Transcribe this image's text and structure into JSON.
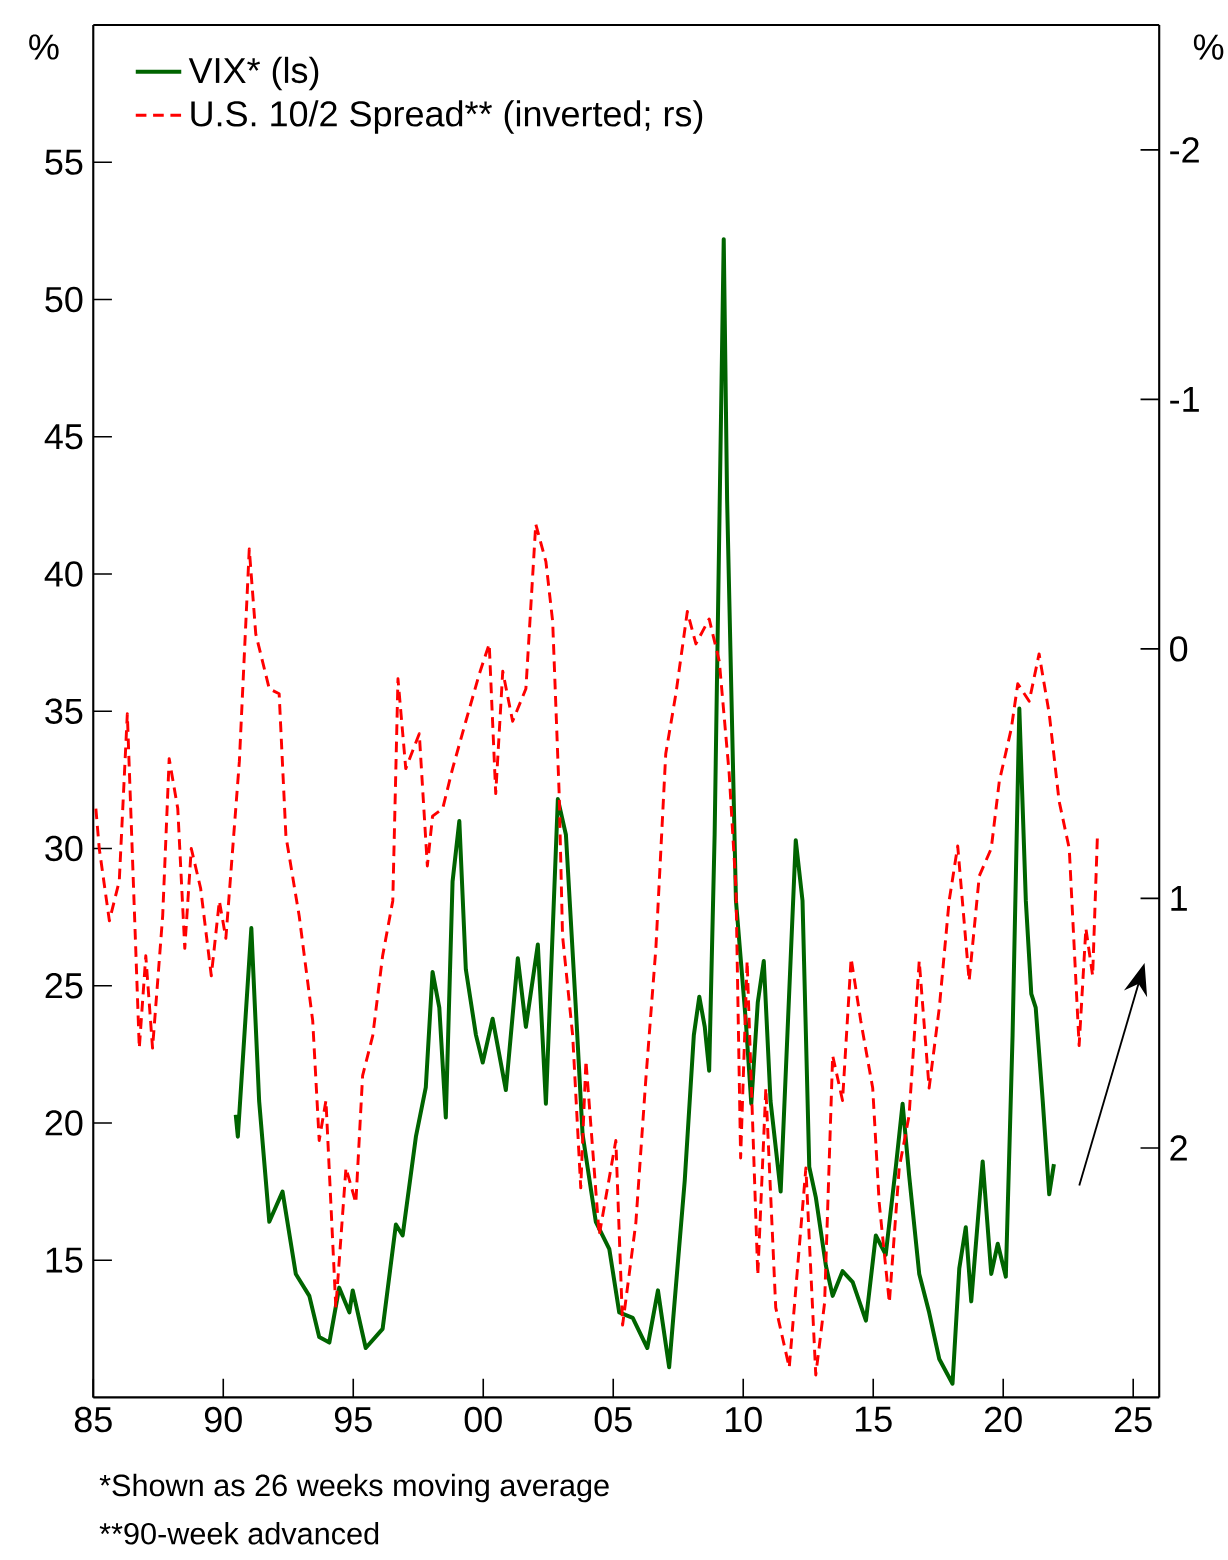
{
  "chart_data": {
    "type": "line",
    "ylabel": "%",
    "y2label": "%",
    "legend": "top left",
    "xlim": [
      1985,
      2026
    ],
    "ylim": [
      10,
      60
    ],
    "y2lim": [
      3,
      -2.5
    ],
    "xticks": [
      {
        "value": 1985,
        "label": "85"
      },
      {
        "value": 1990,
        "label": "90"
      },
      {
        "value": 1995,
        "label": "95"
      },
      {
        "value": 2000,
        "label": "00"
      },
      {
        "value": 2005,
        "label": "05"
      },
      {
        "value": 2010,
        "label": "10"
      },
      {
        "value": 2015,
        "label": "15"
      },
      {
        "value": 2020,
        "label": "20"
      },
      {
        "value": 2025,
        "label": "25"
      }
    ],
    "yticks": [
      15,
      20,
      25,
      30,
      35,
      40,
      45,
      50,
      55
    ],
    "y2ticks": [
      -2,
      -1,
      0,
      1,
      2
    ],
    "annotations": [
      "*Shown as 26 weeks moving average",
      "**90-week advanced"
    ],
    "series": [
      {
        "name": "VIX* (ls)",
        "color": "#006400",
        "line_style": "solid",
        "x": [
          1990.48,
          1990.56,
          1991.08,
          1991.38,
          1991.77,
          1992.28,
          1992.79,
          1993.31,
          1993.69,
          1994.08,
          1994.46,
          1994.85,
          1994.98,
          1995.48,
          1996.13,
          1996.64,
          1996.9,
          1997.41,
          1997.79,
          1998.05,
          1998.31,
          1998.56,
          1998.82,
          1999.08,
          1999.33,
          1999.72,
          1999.98,
          2000.36,
          2000.87,
          2001.33,
          2001.64,
          2002.1,
          2002.41,
          2002.87,
          2003.18,
          2003.56,
          2003.82,
          2004.33,
          2004.85,
          2005.23,
          2005.75,
          2006.31,
          2006.72,
          2007.15,
          2007.75,
          2008.1,
          2008.31,
          2008.52,
          2008.69,
          2008.9,
          2009.25,
          2009.38,
          2009.72,
          2010.1,
          2010.31,
          2010.56,
          2010.79,
          2011.05,
          2011.44,
          2012.02,
          2012.28,
          2012.54,
          2012.79,
          2013.18,
          2013.44,
          2013.82,
          2014.21,
          2014.72,
          2015.1,
          2015.48,
          2015.87,
          2016.13,
          2016.38,
          2016.77,
          2017.15,
          2017.54,
          2018.05,
          2018.31,
          2018.56,
          2018.77,
          2019.21,
          2019.54,
          2019.79,
          2020.1,
          2020.36,
          2020.62,
          2020.87,
          2021.08,
          2021.25,
          2021.52,
          2021.77,
          2021.95
        ],
        "values": [
          20.3,
          19.5,
          27.1,
          20.8,
          16.4,
          17.5,
          14.5,
          13.7,
          12.2,
          12.0,
          14.0,
          13.1,
          13.9,
          11.8,
          12.5,
          16.3,
          15.9,
          19.5,
          21.3,
          25.5,
          24.2,
          20.2,
          28.8,
          31.0,
          25.6,
          23.2,
          22.2,
          23.8,
          21.2,
          26.0,
          23.5,
          26.5,
          20.7,
          31.8,
          30.5,
          24.2,
          19.6,
          16.4,
          15.4,
          13.1,
          12.9,
          11.8,
          13.9,
          11.1,
          17.9,
          23.2,
          24.6,
          23.5,
          21.9,
          30.5,
          52.2,
          42.7,
          28.1,
          23.7,
          20.7,
          24.4,
          25.9,
          20.8,
          17.5,
          30.3,
          28.1,
          18.4,
          17.3,
          14.8,
          13.7,
          14.6,
          14.2,
          12.8,
          15.9,
          15.2,
          18.4,
          20.7,
          18.1,
          14.5,
          13.1,
          11.4,
          10.5,
          14.7,
          16.2,
          13.5,
          18.6,
          14.5,
          15.6,
          14.4,
          23.2,
          35.1,
          28.1,
          24.7,
          24.2,
          20.8,
          17.4,
          18.5
        ]
      },
      {
        "name": "U.S. 10/2 Spread** (inverted; rs)",
        "color": "#ff0000",
        "line_style": "dashed",
        "axis": "y2",
        "x": [
          1985.1,
          1985.23,
          1985.62,
          1986.0,
          1986.31,
          1986.77,
          1987.02,
          1987.28,
          1987.67,
          1987.92,
          1988.25,
          1988.52,
          1988.77,
          1989.13,
          1989.54,
          1989.85,
          1990.1,
          1990.62,
          1991.0,
          1991.25,
          1991.77,
          1992.15,
          1992.41,
          1992.92,
          1993.44,
          1993.69,
          1993.95,
          1994.33,
          1994.72,
          1995.1,
          1995.36,
          1995.75,
          1996.13,
          1996.52,
          1996.72,
          1997.02,
          1997.54,
          1997.85,
          1998.05,
          1998.44,
          1998.82,
          1999.33,
          1999.85,
          2000.23,
          2000.48,
          2000.75,
          2001.13,
          2001.64,
          2002.02,
          2002.41,
          2002.67,
          2002.92,
          2003.05,
          2003.44,
          2003.75,
          2003.95,
          2004.46,
          2005.1,
          2005.36,
          2005.87,
          2006.25,
          2006.64,
          2007.02,
          2007.41,
          2007.85,
          2008.18,
          2008.69,
          2009.08,
          2009.46,
          2009.72,
          2009.9,
          2010.15,
          2010.56,
          2010.87,
          2011.25,
          2011.77,
          2012.41,
          2012.79,
          2013.13,
          2013.44,
          2013.82,
          2014.15,
          2014.52,
          2014.98,
          2015.23,
          2015.62,
          2016.0,
          2016.38,
          2016.77,
          2017.15,
          2017.54,
          2017.92,
          2018.25,
          2018.69,
          2019.08,
          2019.54,
          2019.85,
          2020.31,
          2020.56,
          2021.0,
          2021.38,
          2021.77,
          2022.15,
          2022.54,
          2022.92,
          2023.18,
          2023.44,
          2023.62
        ],
        "values": [
          0.64,
          0.8,
          1.09,
          0.93,
          0.26,
          1.6,
          1.23,
          1.6,
          1.07,
          0.44,
          0.64,
          1.2,
          0.8,
          0.96,
          1.31,
          1.01,
          1.16,
          0.45,
          -0.4,
          -0.06,
          0.16,
          0.18,
          0.75,
          1.07,
          1.49,
          1.97,
          1.81,
          2.64,
          2.08,
          2.22,
          1.71,
          1.55,
          1.23,
          1.01,
          0.12,
          0.48,
          0.34,
          0.87,
          0.67,
          0.64,
          0.48,
          0.29,
          0.1,
          -0.02,
          0.58,
          0.09,
          0.29,
          0.16,
          -0.5,
          -0.35,
          -0.11,
          0.58,
          1.15,
          1.55,
          2.16,
          1.65,
          2.35,
          1.97,
          2.71,
          2.3,
          1.73,
          1.2,
          0.42,
          0.18,
          -0.15,
          -0.02,
          -0.12,
          0.05,
          0.5,
          0.96,
          2.04,
          1.25,
          2.51,
          1.76,
          2.64,
          2.88,
          2.08,
          2.91,
          2.62,
          1.63,
          1.81,
          1.24,
          1.49,
          1.76,
          2.22,
          2.62,
          2.08,
          1.87,
          1.25,
          1.76,
          1.44,
          1.01,
          0.79,
          1.33,
          0.91,
          0.8,
          0.53,
          0.32,
          0.14,
          0.21,
          0.02,
          0.26,
          0.61,
          0.8,
          1.59,
          1.12,
          1.31,
          0.76
        ]
      }
    ]
  }
}
